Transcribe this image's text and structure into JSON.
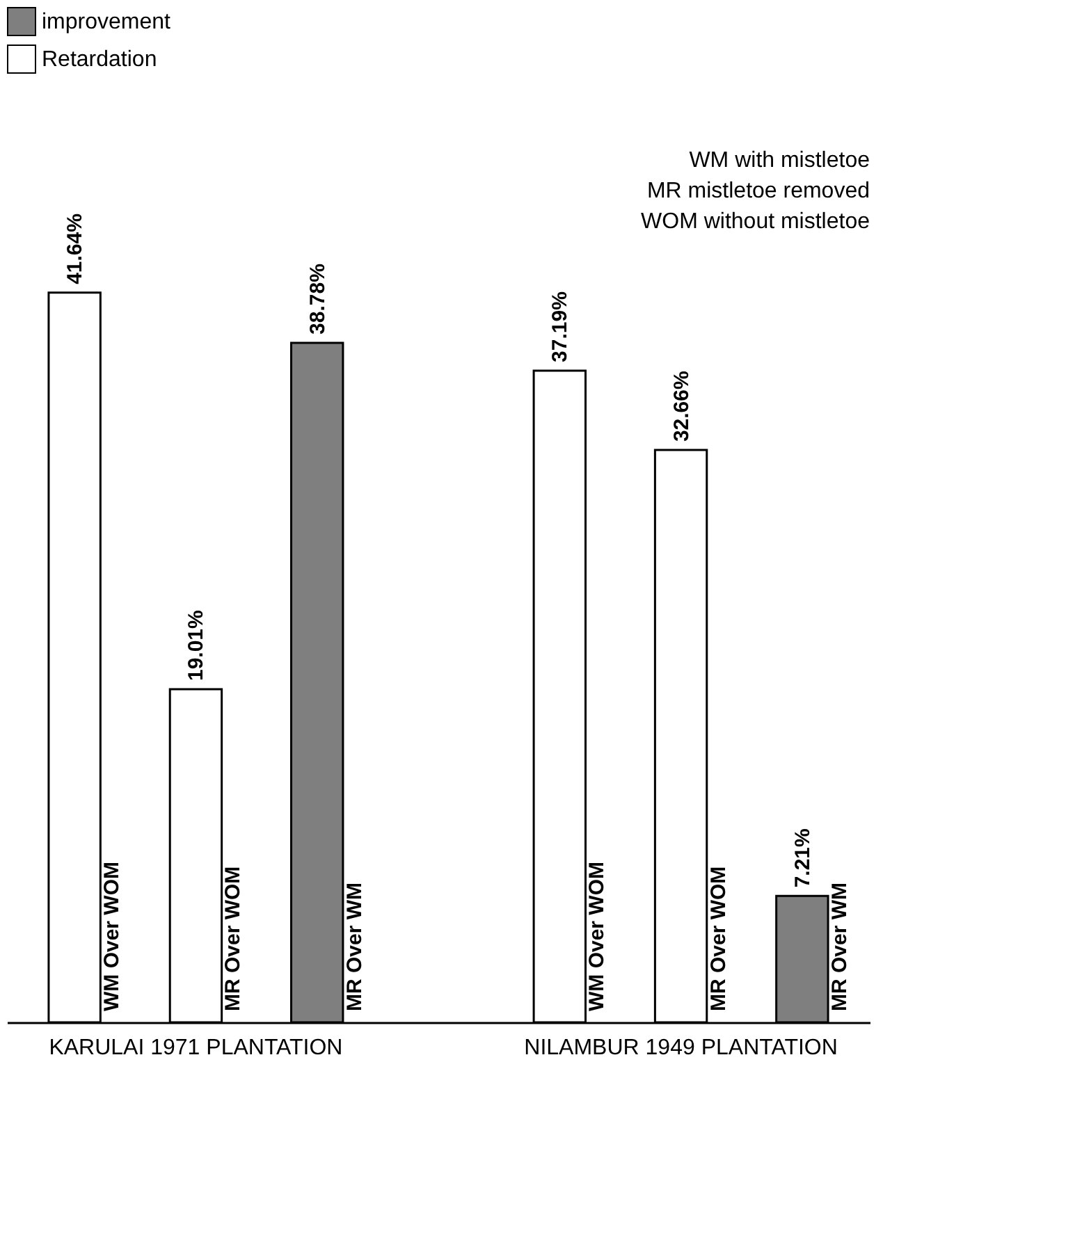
{
  "chart_data": {
    "type": "bar",
    "categories": [
      "WM Over WOM",
      "MR Over WOM",
      "MR Over WM",
      "WM Over WOM",
      "MR Over WOM",
      "MR Over WM"
    ],
    "series": [
      {
        "name": "improvement",
        "color": "#7f7f7f",
        "values": [
          null,
          null,
          38.78,
          null,
          null,
          7.21
        ],
        "value_labels": [
          null,
          null,
          "38.78%",
          null,
          null,
          "7.21%"
        ]
      },
      {
        "name": "Retardation",
        "color": "#ffffff",
        "values": [
          41.64,
          19.01,
          null,
          37.19,
          32.66,
          null
        ],
        "value_labels": [
          "41.64%",
          "19.01%",
          null,
          "37.19%",
          "32.66%",
          null
        ]
      }
    ],
    "legend": "top",
    "grid": false,
    "annotations": [
      "WM  with mistletoe",
      "MR  mistletoe removed",
      "WOM  without mistletoe",
      "KARULAI 1971 PLANTATION",
      "NILAMBUR 1949 PLANTATION"
    ]
  }
}
